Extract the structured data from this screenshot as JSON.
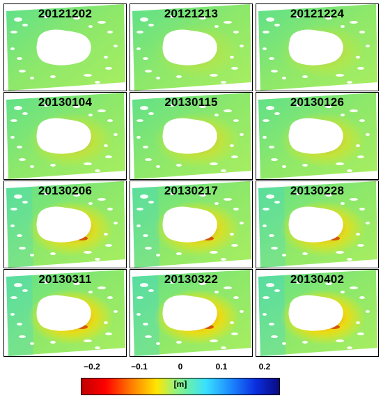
{
  "panels": [
    {
      "date": "20121202",
      "intensity": 0.0
    },
    {
      "date": "20121213",
      "intensity": 0.25
    },
    {
      "date": "20121224",
      "intensity": 0.3
    },
    {
      "date": "20130104",
      "intensity": 0.45
    },
    {
      "date": "20130115",
      "intensity": 0.5
    },
    {
      "date": "20130126",
      "intensity": 0.55
    },
    {
      "date": "20130206",
      "intensity": 0.8
    },
    {
      "date": "20130217",
      "intensity": 0.8
    },
    {
      "date": "20130228",
      "intensity": 0.85
    },
    {
      "date": "20130311",
      "intensity": 0.95
    },
    {
      "date": "20130322",
      "intensity": 1.0
    },
    {
      "date": "20130402",
      "intensity": 1.0
    }
  ],
  "colorbar": {
    "ticks": [
      "−0.2",
      "−0.1",
      "0",
      "0.1",
      "0.2"
    ],
    "unit": "[m]",
    "range": [
      -0.2,
      0.2
    ],
    "colors": [
      "#c00000",
      "#ff0000",
      "#ff7a00",
      "#ffe600",
      "#9cf27a",
      "#39e0ff",
      "#1e8cff",
      "#0a2fe0",
      "#0a0a80"
    ]
  }
}
